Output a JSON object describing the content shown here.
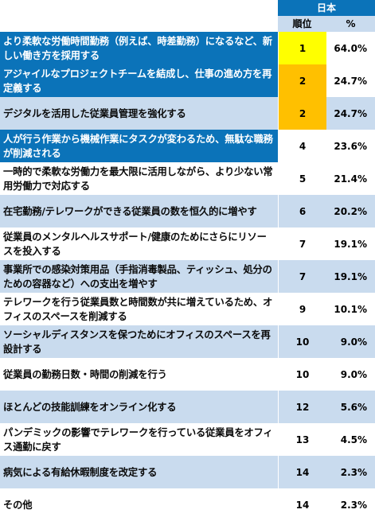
{
  "header": {
    "country": "日本",
    "rank_label": "順位",
    "pct_label": "%"
  },
  "rows": [
    {
      "label": "より柔軟な労働時間勤務（例えば、時差勤務）になるなど、新しい働き方を採用する",
      "rank": "1",
      "pct": "64.0%"
    },
    {
      "label": "アジャイルなプロジェクトチームを結成し、仕事の進め方を再定義する",
      "rank": "2",
      "pct": "24.7%"
    },
    {
      "label": "デジタルを活用した従業員管理を強化する",
      "rank": "2",
      "pct": "24.7%"
    },
    {
      "label": "人が行う作業から機械作業にタスクが変わるため、無駄な職務が削減される",
      "rank": "4",
      "pct": "23.6%"
    },
    {
      "label": "一時的で柔軟な労働力を最大限に活用しながら、より少ない常用労働力で対応する",
      "rank": "5",
      "pct": "21.4%"
    },
    {
      "label": "在宅勤務/テレワークができる従業員の数を恒久的に増やす",
      "rank": "6",
      "pct": "20.2%"
    },
    {
      "label": "従業員のメンタルヘルスサポート/健康のためにさらにリソースを投入する",
      "rank": "7",
      "pct": "19.1%"
    },
    {
      "label": "事業所での感染対策用品（手指消毒製品、ティッシュ、処分のための容器など）への支出を増やす",
      "rank": "7",
      "pct": "19.1%"
    },
    {
      "label": "テレワークを行う従業員数と時間数が共に増えているため、オフィスのスペースを削減する",
      "rank": "9",
      "pct": "10.1%"
    },
    {
      "label": "ソーシャルディスタンスを保つためにオフィスのスペースを再設計する",
      "rank": "10",
      "pct": "9.0%"
    },
    {
      "label": "従業員の勤務日数・時間の削減を行う",
      "rank": "10",
      "pct": "9.0%"
    },
    {
      "label": "ほとんどの技能訓練をオンライン化する",
      "rank": "12",
      "pct": "5.6%"
    },
    {
      "label": "パンデミックの影響でテレワークを行っている従業員をオフィス通勤に戻す",
      "rank": "13",
      "pct": "4.5%"
    },
    {
      "label": "病気による有給休暇制度を改定する",
      "rank": "14",
      "pct": "2.3%"
    },
    {
      "label": "その他",
      "rank": "14",
      "pct": "2.3%"
    }
  ],
  "colors": {
    "header_blue": "#0b73b9",
    "light_blue": "#c9dbee",
    "highlight_yellow": "#ffff00",
    "highlight_orange": "#ffc000"
  }
}
